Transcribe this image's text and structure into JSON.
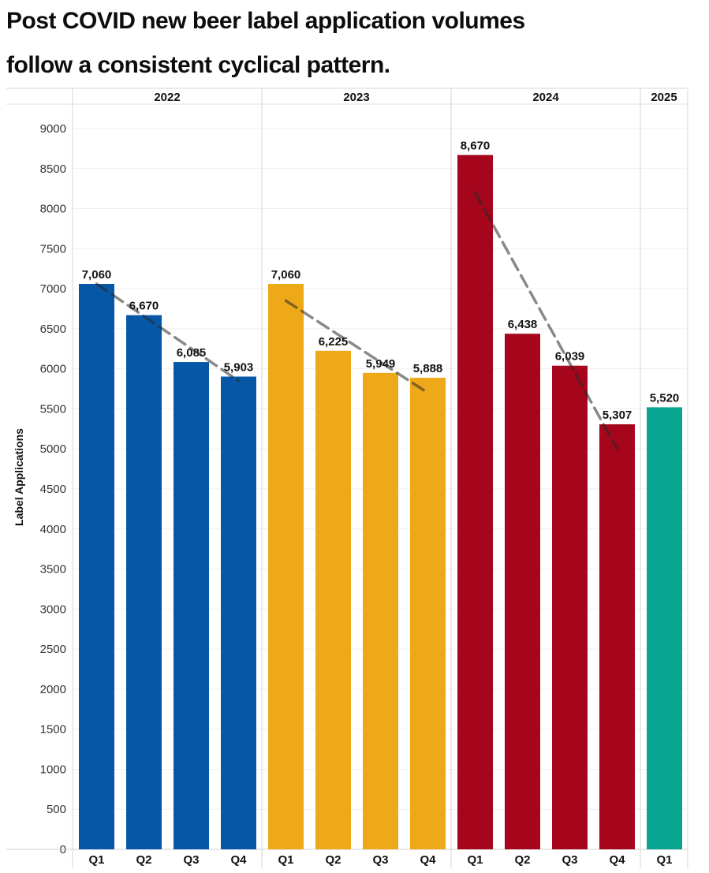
{
  "title_lines": [
    "Post COVID new beer label application volumes",
    "follow a consistent cyclical pattern."
  ],
  "chart_data": {
    "type": "bar",
    "title": "Post COVID new beer label application volumes follow a consistent cyclical pattern.",
    "xlabel": "",
    "ylabel": "Label  Applications",
    "ylim": [
      0,
      9000
    ],
    "yticks": [
      "0",
      "500",
      "1000",
      "1500",
      "2000",
      "2500",
      "3000",
      "3500",
      "4000",
      "4500",
      "5000",
      "5500",
      "6000",
      "6500",
      "7000",
      "7500",
      "8000",
      "8500",
      "9000"
    ],
    "grid": true,
    "groups": [
      {
        "year": "2022",
        "color": "#0658a6",
        "categories": [
          "Q1",
          "Q2",
          "Q3",
          "Q4"
        ],
        "values": [
          7060,
          6670,
          6085,
          5903
        ],
        "labels": [
          "7,060",
          "6,670",
          "6,085",
          "5,903"
        ],
        "trend": [
          7060,
          5850
        ]
      },
      {
        "year": "2023",
        "color": "#eda917",
        "categories": [
          "Q1",
          "Q2",
          "Q3",
          "Q4"
        ],
        "values": [
          7060,
          6225,
          5949,
          5888
        ],
        "labels": [
          "7,060",
          "6,225",
          "5,949",
          "5,888"
        ],
        "trend": [
          6850,
          5700
        ]
      },
      {
        "year": "2024",
        "color": "#a5061c",
        "categories": [
          "Q1",
          "Q2",
          "Q3",
          "Q4"
        ],
        "values": [
          8670,
          6438,
          6039,
          5307
        ],
        "labels": [
          "8,670",
          "6,438",
          "6,039",
          "5,307"
        ],
        "trend": [
          8200,
          5000
        ]
      },
      {
        "year": "2025",
        "color": "#07a58f",
        "categories": [
          "Q1"
        ],
        "values": [
          5520
        ],
        "labels": [
          "5,520"
        ],
        "trend": null
      }
    ]
  }
}
